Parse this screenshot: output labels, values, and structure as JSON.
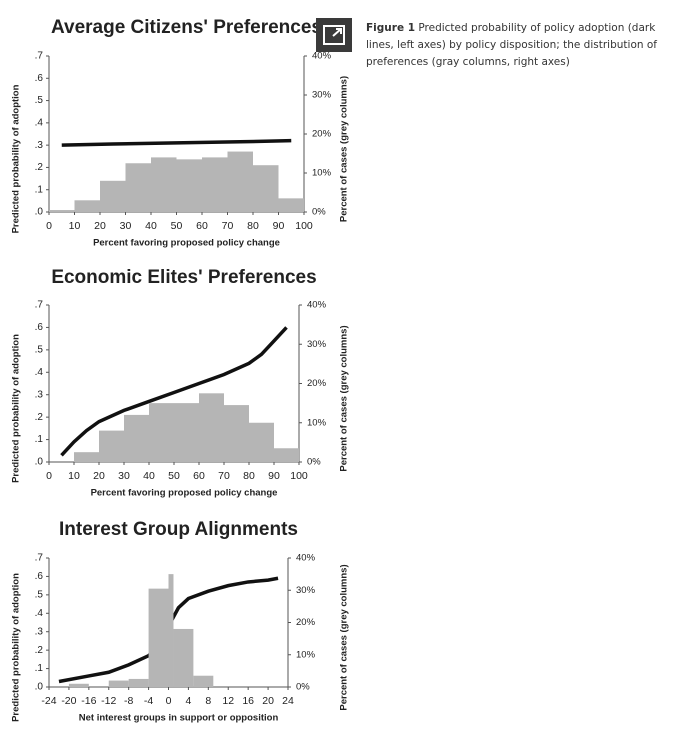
{
  "caption": {
    "label": "Figure 1",
    "text": "Predicted probability of policy adoption (dark lines, left axes) by policy disposition; the distribution of preferences (gray columns, right axes)"
  },
  "chart_data": [
    {
      "type": "combo",
      "title": "Average Citizens' Preferences",
      "xlabel": "Percent favoring proposed policy change",
      "ylabel": "Predicted probability of adoption",
      "y2label": "Percent of cases (grey columns)",
      "xlim": [
        0,
        100
      ],
      "xticks": [
        0,
        10,
        20,
        30,
        40,
        50,
        60,
        70,
        80,
        90,
        100
      ],
      "ylim": [
        0,
        0.7
      ],
      "yticks": [
        {
          "value": 0,
          "label": ".0"
        },
        {
          "value": 0.1,
          "label": ".1"
        },
        {
          "value": 0.2,
          "label": ".2"
        },
        {
          "value": 0.3,
          "label": ".3"
        },
        {
          "value": 0.4,
          "label": ".4"
        },
        {
          "value": 0.5,
          "label": ".5"
        },
        {
          "value": 0.6,
          "label": ".6"
        },
        {
          "value": 0.7,
          "label": ".7"
        }
      ],
      "y2lim": [
        0,
        40
      ],
      "y2ticks": [
        {
          "value": 0,
          "label": "0%"
        },
        {
          "value": 10,
          "label": "10%"
        },
        {
          "value": 20,
          "label": "20%"
        },
        {
          "value": 30,
          "label": "30%"
        },
        {
          "value": 40,
          "label": "40%"
        }
      ],
      "series": [
        {
          "type": "histogram",
          "axis": "y2",
          "color": "#b5b5b5",
          "bins": [
            0,
            10,
            20,
            30,
            40,
            50,
            60,
            70,
            80,
            90,
            100
          ],
          "values": [
            0.5,
            3,
            8,
            12.5,
            14,
            13.5,
            14,
            15.5,
            12,
            3.5
          ]
        },
        {
          "type": "line",
          "color": "#111111",
          "x": [
            5,
            25,
            50,
            75,
            95
          ],
          "values": [
            0.3,
            0.305,
            0.31,
            0.315,
            0.32
          ]
        }
      ]
    },
    {
      "type": "combo",
      "title": "Economic Elites' Preferences",
      "xlabel": "Percent favoring proposed policy change",
      "ylabel": "Predicted probability of adoption",
      "y2label": "Percent of cases (grey columns)",
      "xlim": [
        0,
        100
      ],
      "xticks": [
        0,
        10,
        20,
        30,
        40,
        50,
        60,
        70,
        80,
        90,
        100
      ],
      "ylim": [
        0,
        0.7
      ],
      "yticks": [
        {
          "value": 0,
          "label": ".0"
        },
        {
          "value": 0.1,
          "label": ".1"
        },
        {
          "value": 0.2,
          "label": ".2"
        },
        {
          "value": 0.3,
          "label": ".3"
        },
        {
          "value": 0.4,
          "label": ".4"
        },
        {
          "value": 0.5,
          "label": ".5"
        },
        {
          "value": 0.6,
          "label": ".6"
        },
        {
          "value": 0.7,
          "label": ".7"
        }
      ],
      "y2lim": [
        0,
        40
      ],
      "y2ticks": [
        {
          "value": 0,
          "label": "0%"
        },
        {
          "value": 10,
          "label": "10%"
        },
        {
          "value": 20,
          "label": "20%"
        },
        {
          "value": 30,
          "label": "30%"
        },
        {
          "value": 40,
          "label": "40%"
        }
      ],
      "series": [
        {
          "type": "histogram",
          "axis": "y2",
          "color": "#b5b5b5",
          "bins": [
            0,
            10,
            20,
            30,
            40,
            50,
            60,
            70,
            80,
            90,
            100
          ],
          "values": [
            0,
            2.5,
            8,
            12,
            15,
            15,
            17.5,
            14.5,
            10,
            3.5
          ]
        },
        {
          "type": "line",
          "color": "#111111",
          "x": [
            5,
            10,
            15,
            20,
            30,
            40,
            50,
            60,
            70,
            80,
            85,
            90,
            95
          ],
          "values": [
            0.03,
            0.09,
            0.14,
            0.18,
            0.23,
            0.27,
            0.31,
            0.35,
            0.39,
            0.44,
            0.48,
            0.54,
            0.6
          ]
        }
      ]
    },
    {
      "type": "combo",
      "title": "Interest Group Alignments",
      "xlabel": "Net interest groups in support or opposition",
      "ylabel": "Predicted probability of adoption",
      "y2label": "Percent of cases (grey columns)",
      "xlim": [
        -24,
        24
      ],
      "xticks": [
        -24,
        -20,
        -16,
        -12,
        -8,
        -4,
        0,
        4,
        8,
        12,
        16,
        20,
        24
      ],
      "ylim": [
        0,
        0.7
      ],
      "yticks": [
        {
          "value": 0,
          "label": ".0"
        },
        {
          "value": 0.1,
          "label": ".1"
        },
        {
          "value": 0.2,
          "label": ".2"
        },
        {
          "value": 0.3,
          "label": ".3"
        },
        {
          "value": 0.4,
          "label": ".4"
        },
        {
          "value": 0.5,
          "label": ".5"
        },
        {
          "value": 0.6,
          "label": ".6"
        },
        {
          "value": 0.7,
          "label": ".7"
        }
      ],
      "y2lim": [
        0,
        40
      ],
      "y2ticks": [
        {
          "value": 0,
          "label": "0%"
        },
        {
          "value": 10,
          "label": "10%"
        },
        {
          "value": 20,
          "label": "20%"
        },
        {
          "value": 30,
          "label": "30%"
        },
        {
          "value": 40,
          "label": "40%"
        }
      ],
      "series": [
        {
          "type": "histogram",
          "axis": "y2",
          "color": "#b5b5b5",
          "bins": [
            -20,
            -16,
            -12,
            -8,
            -4,
            0,
            1,
            5,
            9
          ],
          "values": [
            1,
            0,
            2,
            2.5,
            30.5,
            35,
            18,
            3.5
          ]
        },
        {
          "type": "line",
          "color": "#111111",
          "x": [
            -22,
            -16,
            -12,
            -8,
            -4,
            -2,
            0,
            2,
            4,
            8,
            12,
            16,
            20,
            22
          ],
          "values": [
            0.03,
            0.06,
            0.08,
            0.12,
            0.17,
            0.22,
            0.33,
            0.43,
            0.48,
            0.52,
            0.55,
            0.57,
            0.58,
            0.59
          ]
        }
      ]
    }
  ]
}
